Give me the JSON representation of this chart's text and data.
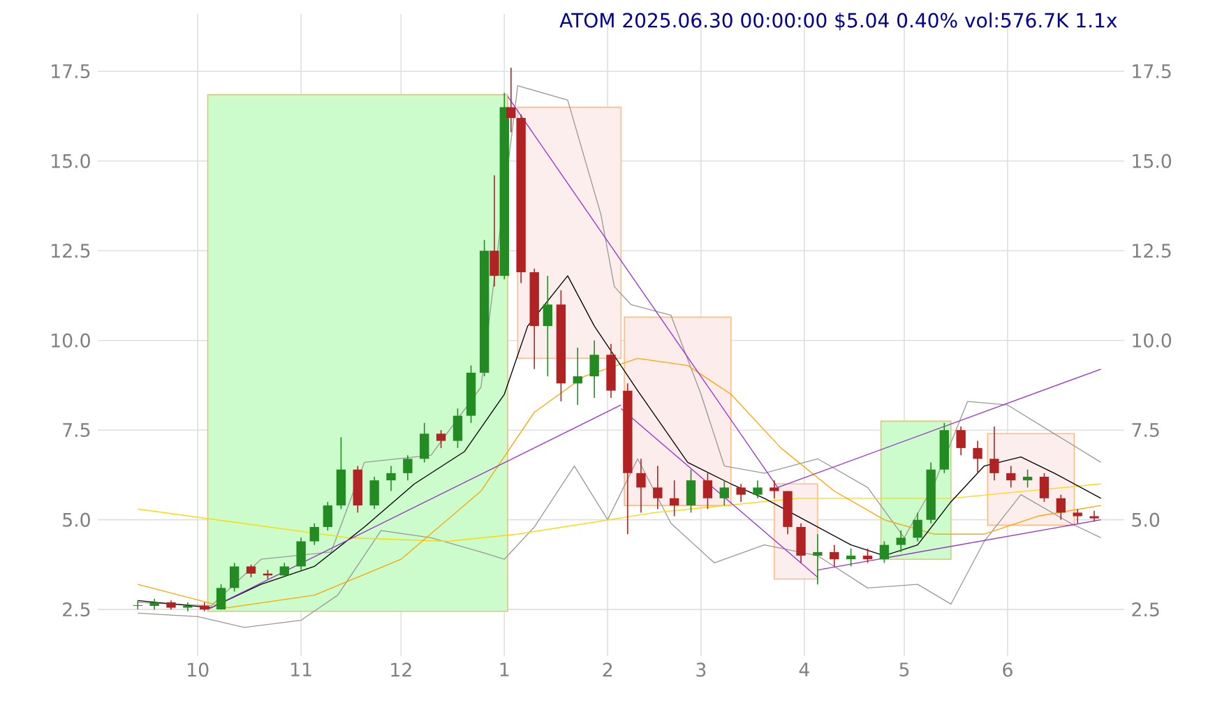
{
  "chart_data": {
    "type": "candlestick",
    "title": "ATOM 2025.06.30 00:00:00 $5.04 0.40% vol:576.7K 1.1x",
    "x": [
      "2024-09-13",
      "2024-09-18",
      "2024-09-23",
      "2024-09-28",
      "2024-10-03",
      "2024-10-08",
      "2024-10-12",
      "2024-10-17",
      "2024-10-22",
      "2024-10-27",
      "2024-11-01",
      "2024-11-05",
      "2024-11-09",
      "2024-11-13",
      "2024-11-18",
      "2024-11-23",
      "2024-11-28",
      "2024-12-03",
      "2024-12-08",
      "2024-12-13",
      "2024-12-18",
      "2024-12-22",
      "2024-12-26",
      "2024-12-29",
      "2025-01-01",
      "2025-01-03",
      "2025-01-06",
      "2025-01-10",
      "2025-01-14",
      "2025-01-18",
      "2025-01-23",
      "2025-01-28",
      "2025-02-02",
      "2025-02-07",
      "2025-02-11",
      "2025-02-16",
      "2025-02-21",
      "2025-02-26",
      "2025-03-03",
      "2025-03-08",
      "2025-03-13",
      "2025-03-18",
      "2025-03-23",
      "2025-03-27",
      "2025-03-31",
      "2025-04-05",
      "2025-04-10",
      "2025-04-15",
      "2025-04-20",
      "2025-04-25",
      "2025-04-30",
      "2025-05-05",
      "2025-05-09",
      "2025-05-13",
      "2025-05-18",
      "2025-05-23",
      "2025-05-28",
      "2025-06-02",
      "2025-06-07",
      "2025-06-12",
      "2025-06-17",
      "2025-06-22",
      "2025-06-27"
    ],
    "ohlc": [
      [
        2.6,
        2.75,
        2.5,
        2.6
      ],
      [
        2.6,
        2.8,
        2.5,
        2.7
      ],
      [
        2.7,
        2.75,
        2.5,
        2.55
      ],
      [
        2.55,
        2.7,
        2.45,
        2.6
      ],
      [
        2.6,
        2.7,
        2.45,
        2.5
      ],
      [
        2.5,
        3.2,
        2.5,
        3.1
      ],
      [
        3.1,
        3.8,
        3.0,
        3.7
      ],
      [
        3.7,
        3.75,
        3.4,
        3.5
      ],
      [
        3.5,
        3.6,
        3.35,
        3.45
      ],
      [
        3.45,
        3.8,
        3.4,
        3.7
      ],
      [
        3.7,
        4.5,
        3.6,
        4.4
      ],
      [
        4.4,
        4.9,
        4.3,
        4.8
      ],
      [
        4.8,
        5.5,
        4.7,
        5.4
      ],
      [
        5.4,
        7.3,
        5.3,
        6.4
      ],
      [
        6.4,
        6.5,
        5.2,
        5.4
      ],
      [
        5.4,
        6.2,
        5.3,
        6.1
      ],
      [
        6.1,
        6.5,
        5.8,
        6.3
      ],
      [
        6.3,
        6.8,
        6.1,
        6.7
      ],
      [
        6.7,
        7.7,
        6.6,
        7.4
      ],
      [
        7.4,
        7.5,
        7.0,
        7.2
      ],
      [
        7.2,
        8.1,
        7.0,
        7.9
      ],
      [
        7.9,
        9.3,
        7.7,
        9.1
      ],
      [
        9.1,
        12.8,
        9.0,
        12.5
      ],
      [
        12.5,
        14.6,
        11.5,
        11.8
      ],
      [
        11.8,
        16.9,
        11.7,
        16.5
      ],
      [
        16.5,
        17.6,
        15.8,
        16.2
      ],
      [
        16.2,
        16.3,
        11.6,
        11.9
      ],
      [
        11.9,
        12.0,
        9.2,
        10.4
      ],
      [
        10.4,
        11.8,
        9.0,
        11.0
      ],
      [
        11.0,
        11.4,
        8.3,
        8.8
      ],
      [
        8.8,
        9.8,
        8.2,
        9.0
      ],
      [
        9.0,
        10.0,
        8.4,
        9.6
      ],
      [
        9.6,
        9.9,
        8.4,
        8.6
      ],
      [
        8.6,
        8.8,
        4.6,
        6.3
      ],
      [
        6.3,
        6.7,
        5.2,
        5.9
      ],
      [
        5.9,
        6.5,
        5.3,
        5.6
      ],
      [
        5.6,
        6.1,
        5.1,
        5.4
      ],
      [
        5.4,
        6.4,
        5.2,
        6.1
      ],
      [
        6.1,
        6.3,
        5.3,
        5.6
      ],
      [
        5.6,
        6.1,
        5.4,
        5.9
      ],
      [
        5.9,
        6.0,
        5.5,
        5.7
      ],
      [
        5.7,
        6.1,
        5.6,
        5.9
      ],
      [
        5.9,
        6.1,
        5.6,
        5.8
      ],
      [
        5.8,
        5.8,
        4.6,
        4.8
      ],
      [
        4.8,
        4.9,
        3.8,
        4.0
      ],
      [
        4.0,
        4.6,
        3.2,
        4.1
      ],
      [
        4.1,
        4.3,
        3.7,
        3.9
      ],
      [
        3.9,
        4.2,
        3.7,
        4.0
      ],
      [
        4.0,
        4.2,
        3.8,
        3.9
      ],
      [
        3.9,
        4.4,
        3.8,
        4.3
      ],
      [
        4.3,
        4.7,
        4.1,
        4.5
      ],
      [
        4.5,
        5.2,
        4.4,
        5.0
      ],
      [
        5.0,
        6.6,
        4.9,
        6.4
      ],
      [
        6.4,
        7.7,
        6.3,
        7.5
      ],
      [
        7.5,
        7.6,
        6.8,
        7.0
      ],
      [
        7.0,
        7.2,
        6.3,
        6.7
      ],
      [
        6.7,
        7.6,
        6.1,
        6.3
      ],
      [
        6.3,
        6.5,
        5.9,
        6.1
      ],
      [
        6.1,
        6.4,
        5.9,
        6.2
      ],
      [
        6.2,
        6.3,
        5.5,
        5.6
      ],
      [
        5.6,
        5.7,
        5.0,
        5.2
      ],
      [
        5.2,
        5.3,
        4.9,
        5.1
      ],
      [
        5.1,
        5.25,
        4.95,
        5.04
      ]
    ],
    "series": [
      {
        "type": "area",
        "color": "#ccfccc",
        "x": [
          "2024-10-04",
          "2024-10-04",
          "2025-01-02",
          "2025-01-02"
        ],
        "values": [
          2.45,
          16.85,
          16.85,
          2.45
        ]
      },
      {
        "type": "area",
        "color": "#fdeeee",
        "x": [
          "2025-01-05",
          "2025-01-05",
          "2025-02-05",
          "2025-02-05"
        ],
        "values": [
          9.5,
          16.5,
          16.5,
          9.5
        ]
      },
      {
        "type": "area",
        "color": "#fcecec",
        "x": [
          "2025-02-06",
          "2025-02-06",
          "2025-03-10",
          "2025-03-10"
        ],
        "values": [
          5.4,
          10.65,
          10.65,
          5.4
        ]
      },
      {
        "type": "area",
        "color": "#fdeeee",
        "x": [
          "2025-03-23",
          "2025-03-23",
          "2025-04-05",
          "2025-04-05"
        ],
        "values": [
          3.35,
          6.0,
          6.0,
          3.35
        ]
      },
      {
        "type": "area",
        "color": "#ccfccc",
        "x": [
          "2025-04-24",
          "2025-04-24",
          "2025-05-15",
          "2025-05-15"
        ],
        "values": [
          3.9,
          7.75,
          7.75,
          3.9
        ]
      },
      {
        "type": "area",
        "color": "#fdeeee",
        "x": [
          "2025-05-26",
          "2025-05-26",
          "2025-06-21",
          "2025-06-21"
        ],
        "values": [
          4.85,
          7.4,
          7.4,
          4.85
        ]
      },
      {
        "type": "line",
        "color": "#999999",
        "x": [
          "2024-09-13",
          "2024-10-05",
          "2024-10-20",
          "2024-11-10",
          "2024-11-20",
          "2024-12-10",
          "2024-12-25",
          "2025-01-05",
          "2025-01-20",
          "2025-01-30",
          "2025-02-03",
          "2025-02-08",
          "2025-02-20",
          "2025-03-01",
          "2025-03-08",
          "2025-03-20",
          "2025-04-05",
          "2025-04-20",
          "2025-05-01",
          "2025-05-10",
          "2025-05-20",
          "2025-06-01",
          "2025-06-15",
          "2025-06-29"
        ],
        "values": [
          2.7,
          2.6,
          3.9,
          4.1,
          6.6,
          6.8,
          8.7,
          17.1,
          16.7,
          13.5,
          11.5,
          11.0,
          10.7,
          8.5,
          6.5,
          6.3,
          6.7,
          5.9,
          4.5,
          6.0,
          8.3,
          8.2,
          7.4,
          6.6
        ]
      },
      {
        "type": "line",
        "color": "#999999",
        "x": [
          "2024-09-13",
          "2024-10-01",
          "2024-10-15",
          "2024-11-01",
          "2024-11-12",
          "2024-11-25",
          "2024-12-10",
          "2024-12-25",
          "2025-01-01",
          "2025-01-10",
          "2025-01-22",
          "2025-02-01",
          "2025-02-10",
          "2025-02-20",
          "2025-03-05",
          "2025-03-20",
          "2025-04-05",
          "2025-04-20",
          "2025-05-05",
          "2025-05-15",
          "2025-05-25",
          "2025-06-05",
          "2025-06-20",
          "2025-06-29"
        ],
        "values": [
          2.4,
          2.3,
          2.0,
          2.2,
          2.9,
          4.7,
          4.5,
          4.1,
          3.9,
          4.8,
          6.5,
          5.0,
          6.7,
          4.9,
          3.8,
          4.3,
          4.0,
          3.1,
          3.2,
          2.65,
          4.4,
          5.7,
          4.9,
          4.5
        ]
      },
      {
        "type": "line",
        "color": "#ffd700",
        "x": [
          "2024-09-13",
          "2024-11-15",
          "2024-12-15",
          "2025-01-05",
          "2025-02-15",
          "2025-03-30",
          "2025-05-15",
          "2025-06-29"
        ],
        "values": [
          5.3,
          4.5,
          4.4,
          4.6,
          5.2,
          5.6,
          5.6,
          6.0
        ]
      },
      {
        "type": "line",
        "color": "#ffa500",
        "x": [
          "2024-09-13",
          "2024-10-10",
          "2024-11-05",
          "2024-12-01",
          "2024-12-25",
          "2025-01-10",
          "2025-01-25",
          "2025-02-10",
          "2025-02-25",
          "2025-03-10",
          "2025-03-25",
          "2025-04-10",
          "2025-04-25",
          "2025-05-10",
          "2025-05-25",
          "2025-06-10",
          "2025-06-29"
        ],
        "values": [
          3.2,
          2.55,
          2.9,
          3.9,
          5.8,
          8.0,
          9.0,
          9.5,
          9.3,
          8.5,
          7.0,
          5.8,
          5.0,
          4.6,
          4.6,
          5.1,
          5.4
        ]
      },
      {
        "type": "line",
        "color": "#000000",
        "x": [
          "2024-09-13",
          "2024-10-05",
          "2024-10-20",
          "2024-11-05",
          "2024-11-20",
          "2024-12-05",
          "2024-12-20",
          "2025-01-01",
          "2025-01-08",
          "2025-01-20",
          "2025-01-28",
          "2025-02-10",
          "2025-02-25",
          "2025-03-10",
          "2025-03-20",
          "2025-04-01",
          "2025-04-15",
          "2025-04-25",
          "2025-05-05",
          "2025-05-15",
          "2025-05-25",
          "2025-06-05",
          "2025-06-15",
          "2025-06-29"
        ],
        "values": [
          2.75,
          2.55,
          3.2,
          3.7,
          4.8,
          6.0,
          6.9,
          8.5,
          10.4,
          11.8,
          10.4,
          8.6,
          6.6,
          6.0,
          5.6,
          5.0,
          4.3,
          4.0,
          4.3,
          5.5,
          6.5,
          6.75,
          6.3,
          5.6
        ]
      },
      {
        "type": "line",
        "color": "#9932cc",
        "x": [
          "2024-10-04",
          "2025-02-05"
        ],
        "values": [
          2.5,
          8.2
        ]
      },
      {
        "type": "line",
        "color": "#9932cc",
        "x": [
          "2025-01-02",
          "2025-03-24"
        ],
        "values": [
          16.8,
          5.9
        ]
      },
      {
        "type": "line",
        "color": "#9932cc",
        "x": [
          "2025-02-05",
          "2025-04-05"
        ],
        "values": [
          8.1,
          3.4
        ]
      },
      {
        "type": "line",
        "color": "#9932cc",
        "x": [
          "2025-03-24",
          "2025-06-29"
        ],
        "values": [
          5.9,
          9.2
        ]
      },
      {
        "type": "line",
        "color": "#9932cc",
        "x": [
          "2025-04-05",
          "2025-06-29"
        ],
        "values": [
          3.6,
          5.0
        ]
      }
    ],
    "xlim": [
      "2024-09-01",
      "2025-07-06"
    ],
    "xticks": [
      {
        "value": "2024-10-01",
        "label": "10"
      },
      {
        "value": "2024-11-01",
        "label": "11"
      },
      {
        "value": "2024-12-01",
        "label": "12"
      },
      {
        "value": "2025-01-01",
        "label": "1"
      },
      {
        "value": "2025-02-01",
        "label": "2"
      },
      {
        "value": "2025-03-01",
        "label": "3"
      },
      {
        "value": "2025-04-01",
        "label": "4"
      },
      {
        "value": "2025-05-01",
        "label": "5"
      },
      {
        "value": "2025-06-01",
        "label": "6"
      }
    ],
    "ylim": [
      1.2,
      19.1
    ],
    "yticks": [
      2.5,
      {
        "value": 5,
        "label": "5.0"
      },
      7.5,
      {
        "value": 10,
        "label": "10.0"
      },
      12.5,
      {
        "value": 15,
        "label": "15.0"
      },
      17.5
    ],
    "y2lim": [
      1.2,
      19.1
    ],
    "y2ticks": [
      2.5,
      {
        "value": 5,
        "label": "5.0"
      },
      7.5,
      {
        "value": 10,
        "label": "10.0"
      },
      12.5,
      {
        "value": 15,
        "label": "15.0"
      },
      17.5
    ],
    "grid": true
  }
}
